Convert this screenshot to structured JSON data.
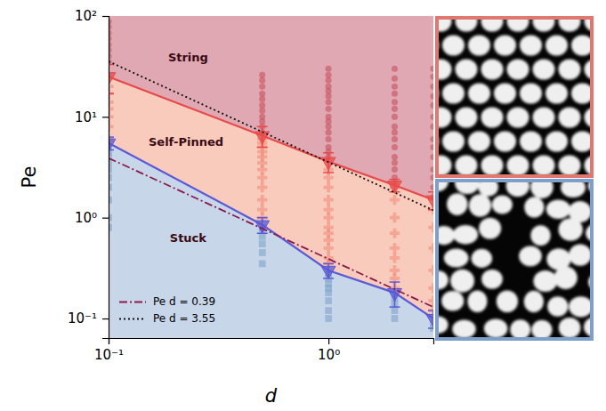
{
  "chart_data": {
    "type": "scatter",
    "x_label": "d",
    "y_label": "Pe",
    "log": true,
    "xlim": [
      0.1,
      3
    ],
    "ylim": [
      0.064,
      100
    ],
    "xticks": [
      {
        "value": 0.1,
        "label": "10⁻¹"
      },
      {
        "value": 1,
        "label": "10⁰"
      }
    ],
    "yticks": [
      {
        "value": 0.1,
        "label": "10⁻¹"
      },
      {
        "value": 1,
        "label": "10⁰"
      },
      {
        "value": 10,
        "label": "10¹"
      },
      {
        "value": 100,
        "label": "10²"
      }
    ],
    "legend": "lower left",
    "regions": [
      {
        "label": "String",
        "color": "#e0a8b2",
        "label_x": 0.23,
        "label_y": 38
      },
      {
        "label": "Self-Pinned",
        "color": "#f9cbbd",
        "label_x": 0.225,
        "label_y": 5.5
      },
      {
        "label": "Stuck",
        "color": "#c7d6e8",
        "label_x": 0.23,
        "label_y": 0.62
      }
    ],
    "series": [
      {
        "type": "scatter",
        "marker": "circle",
        "color": "#c8505f",
        "x": [
          0.1,
          0.1,
          0.1,
          0.1,
          0.1,
          0.1,
          0.1,
          0.1,
          0.5,
          0.5,
          0.5,
          0.5,
          0.5,
          0.5,
          0.5,
          0.5,
          0.5,
          0.5,
          0.5,
          1,
          1,
          1,
          1,
          1,
          1,
          1,
          1,
          1,
          1,
          1,
          1,
          1,
          1,
          1,
          1,
          2,
          2,
          2,
          2,
          2,
          2,
          2,
          2,
          2,
          2,
          2,
          2,
          2,
          2,
          2,
          2,
          3,
          3,
          3,
          3,
          3,
          3,
          3,
          3,
          3,
          3,
          3,
          3,
          3,
          3
        ],
        "values": [
          35,
          40,
          46,
          52,
          60,
          68,
          78,
          88,
          7,
          8,
          9,
          10,
          11.5,
          13,
          15,
          17,
          20,
          23,
          26,
          4,
          4.5,
          5,
          6,
          7,
          8,
          9,
          10,
          12,
          14,
          16,
          18,
          20,
          23,
          26,
          30,
          2.2,
          2.5,
          3,
          3.5,
          4,
          5,
          6,
          7,
          8,
          10,
          12,
          14,
          17,
          20,
          24,
          30,
          1.6,
          2,
          2.5,
          3,
          4,
          5,
          6,
          8,
          10,
          13,
          16,
          20,
          25,
          30
        ]
      },
      {
        "type": "scatter",
        "marker": "plus",
        "color": "#f08c78",
        "x": [
          0.1,
          0.1,
          0.1,
          0.1,
          0.1,
          0.1,
          0.1,
          0.5,
          0.5,
          0.5,
          0.5,
          0.5,
          0.5,
          0.5,
          0.5,
          0.5,
          0.5,
          0.5,
          0.5,
          1,
          1,
          1,
          1,
          1,
          1,
          1,
          1,
          1,
          1,
          1,
          1,
          2,
          2,
          2,
          2,
          2,
          2,
          2,
          2,
          2,
          3,
          3,
          3,
          3,
          3,
          3,
          3
        ],
        "values": [
          6,
          8,
          10,
          12,
          14,
          17,
          20,
          1,
          1.2,
          1.5,
          2,
          2.5,
          3,
          3.5,
          4,
          4.5,
          5,
          5.5,
          6,
          0.35,
          0.4,
          0.5,
          0.6,
          0.7,
          0.8,
          1,
          1.2,
          1.5,
          2,
          2.5,
          3,
          0.2,
          0.25,
          0.3,
          0.4,
          0.5,
          0.7,
          1,
          1.5,
          2,
          0.12,
          0.15,
          0.2,
          0.3,
          0.5,
          0.8,
          1.2
        ]
      },
      {
        "type": "scatter",
        "marker": "square",
        "color": "#7fa3cc",
        "x": [
          0.1,
          0.1,
          0.1,
          0.1,
          0.1,
          0.1,
          0.1,
          0.1,
          0.1,
          0.1,
          0.5,
          0.5,
          0.5,
          0.5,
          0.5,
          0.5,
          1,
          1,
          1,
          1,
          1,
          1,
          1,
          1,
          2,
          2,
          2,
          2,
          3,
          3
        ],
        "values": [
          0.8,
          1,
          1.5,
          2,
          2.5,
          3,
          3.5,
          4,
          4.5,
          5,
          0.35,
          0.45,
          0.55,
          0.65,
          0.75,
          0.8,
          0.1,
          0.12,
          0.15,
          0.18,
          0.2,
          0.22,
          0.25,
          0.28,
          0.1,
          0.12,
          0.14,
          0.16,
          0.08,
          0.09
        ]
      },
      {
        "type": "line",
        "marker": "triangle-down",
        "color": "#e84a4a",
        "x": [
          0.1,
          0.5,
          1,
          2,
          3
        ],
        "values": [
          25,
          6.5,
          3.6,
          2.1,
          1.5
        ],
        "errors": [
          8,
          1.5,
          0.8,
          0.3,
          0.3
        ]
      },
      {
        "type": "line",
        "marker": "triangle-down",
        "color": "#5a5ad6",
        "x": [
          0.1,
          0.5,
          1,
          2,
          3
        ],
        "values": [
          5.5,
          0.85,
          0.3,
          0.18,
          0.1
        ],
        "errors": [
          0.8,
          0.15,
          0.05,
          0.05,
          0.02
        ]
      },
      {
        "name": "Pe d = 0.39",
        "type": "line",
        "line_style": "dashdot",
        "color": "#8b1a4a",
        "x": [
          0.1,
          3
        ],
        "values": [
          3.9,
          0.13
        ]
      },
      {
        "name": "Pe d = 3.55",
        "type": "line",
        "line_style": "dotted",
        "color": "#111111",
        "x": [
          0.1,
          3
        ],
        "values": [
          35.5,
          1.183
        ]
      }
    ]
  }
}
